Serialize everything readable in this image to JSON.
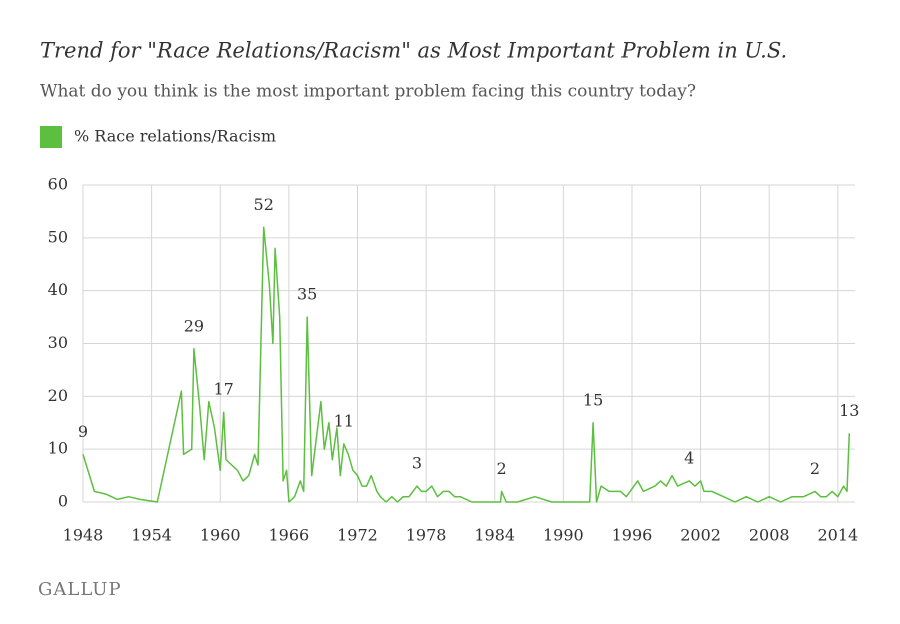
{
  "chart_data": {
    "type": "line",
    "title": "Trend for \"Race Relations/Racism\" as Most Important Problem in U.S.",
    "subtitle": "What do you think is the most important problem facing this country today?",
    "source": "GALLUP",
    "series": [
      {
        "name": "% Race relations/Racism",
        "color": "#5cbf3f",
        "x": [
          1948.0,
          1949.0,
          1950.0,
          1951.0,
          1952.0,
          1953.0,
          1954.5,
          1956.6,
          1956.8,
          1957.5,
          1957.7,
          1958.2,
          1958.6,
          1959.0,
          1959.5,
          1960.0,
          1960.3,
          1960.5,
          1961.0,
          1961.5,
          1962.0,
          1962.5,
          1963.0,
          1963.3,
          1963.8,
          1964.3,
          1964.6,
          1964.8,
          1965.2,
          1965.5,
          1965.8,
          1966.0,
          1966.5,
          1967.0,
          1967.3,
          1967.6,
          1968.0,
          1968.4,
          1968.8,
          1969.1,
          1969.5,
          1969.8,
          1970.2,
          1970.5,
          1970.8,
          1971.2,
          1971.6,
          1972.0,
          1972.4,
          1972.8,
          1973.2,
          1973.7,
          1974.0,
          1974.5,
          1975.0,
          1975.5,
          1976.0,
          1976.5,
          1977.2,
          1977.6,
          1978.0,
          1978.5,
          1979.0,
          1979.5,
          1980.0,
          1980.5,
          1981.0,
          1982.0,
          1983.0,
          1984.5,
          1984.6,
          1985.0,
          1986.0,
          1987.5,
          1989.0,
          1990.0,
          1992.3,
          1992.6,
          1992.9,
          1993.3,
          1994.0,
          1995.0,
          1995.5,
          1996.5,
          1997.0,
          1998.0,
          1998.5,
          1999.0,
          1999.5,
          2000.0,
          2001.0,
          2001.5,
          2002.0,
          2002.3,
          2003.0,
          2004.0,
          2005.0,
          2006.0,
          2007.0,
          2008.0,
          2009.0,
          2010.0,
          2011.0,
          2012.0,
          2012.5,
          2013.0,
          2013.5,
          2014.0,
          2014.5,
          2014.8,
          2015.0
        ],
        "values": [
          9,
          2,
          1.5,
          0.5,
          1,
          0.5,
          0,
          21,
          9,
          10,
          29,
          18,
          8,
          19,
          14,
          6,
          17,
          8,
          7,
          6,
          4,
          5,
          9,
          7,
          52,
          41,
          30,
          48,
          35,
          4,
          6,
          0,
          1,
          4,
          2,
          35,
          5,
          12,
          19,
          10,
          15,
          8,
          14,
          5,
          11,
          9,
          6,
          5,
          3,
          3,
          5,
          2,
          1,
          0,
          1,
          0,
          1,
          1,
          3,
          2,
          2,
          3,
          1,
          2,
          2,
          1,
          1,
          0,
          0,
          0,
          2,
          0,
          0,
          1,
          0,
          0,
          0,
          15,
          0,
          3,
          2,
          2,
          1,
          4,
          2,
          3,
          4,
          3,
          5,
          3,
          4,
          3,
          4,
          2,
          2,
          1,
          0,
          1,
          0,
          1,
          0,
          1,
          1,
          2,
          1,
          1,
          2,
          1,
          3,
          2,
          13
        ],
        "value_labels": [
          "9",
          null,
          null,
          null,
          null,
          null,
          null,
          null,
          null,
          null,
          "29",
          null,
          null,
          null,
          null,
          null,
          "17",
          null,
          null,
          null,
          null,
          null,
          null,
          null,
          "52",
          null,
          null,
          null,
          null,
          null,
          null,
          null,
          null,
          null,
          null,
          "35",
          null,
          null,
          null,
          null,
          null,
          null,
          null,
          null,
          "11",
          null,
          null,
          null,
          null,
          null,
          null,
          null,
          null,
          null,
          null,
          null,
          null,
          null,
          "3",
          null,
          null,
          null,
          null,
          null,
          null,
          null,
          null,
          null,
          null,
          null,
          "2",
          null,
          null,
          null,
          null,
          null,
          null,
          "15",
          null,
          null,
          null,
          null,
          null,
          null,
          null,
          null,
          null,
          null,
          null,
          null,
          "4",
          null,
          null,
          null,
          null,
          null,
          null,
          null,
          null,
          null,
          null,
          null,
          null,
          "2",
          null,
          null,
          null,
          null,
          null,
          null,
          "13"
        ]
      }
    ],
    "xlim": [
      1948,
      2015.5
    ],
    "xticks": [
      1948,
      1954,
      1960,
      1966,
      1972,
      1978,
      1984,
      1990,
      1996,
      2002,
      2008,
      2014
    ],
    "ylim": [
      0,
      60
    ],
    "yticks": [
      0,
      10,
      20,
      30,
      40,
      50,
      60
    ],
    "grid": true
  }
}
